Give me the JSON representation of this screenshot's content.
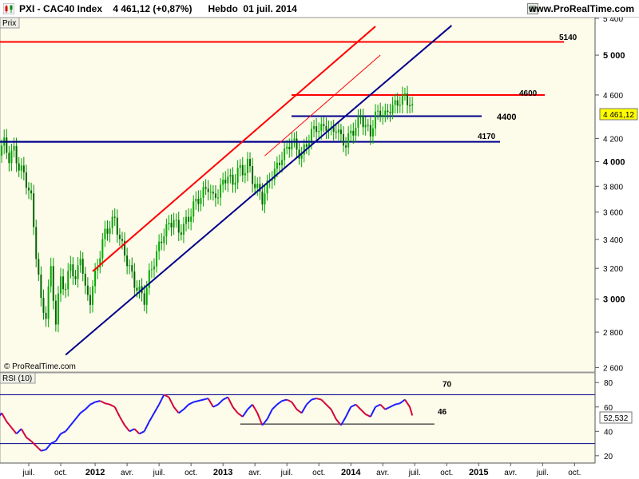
{
  "header": {
    "title": "PXI - CAC40 Index    4 461,12 (+0,87%)      Hebdo  01 juil. 2014",
    "site": "www.ProRealTime.com"
  },
  "colors": {
    "bull": "#00aa00",
    "bear": "#009000",
    "red": "#ff0000",
    "blue": "#00008b",
    "rsi": "#1a1aff",
    "rsi_down": "#d0003c",
    "panel_bg": "#fdfbea",
    "last_price": "#ffff00"
  },
  "chart_data": [
    {
      "type": "candlestick",
      "panel_label": "Prix",
      "watermark": "© ProRealTime.com",
      "last_price_label": "4 461,12",
      "ylim": [
        2580,
        5400
      ],
      "y_tick_labels": [
        {
          "value": 5400,
          "label": "5 400"
        },
        {
          "value": 5000,
          "label": "5 000",
          "bold": true
        },
        {
          "value": 4600,
          "label": "4 600"
        },
        {
          "value": 4200,
          "label": "4 200"
        },
        {
          "value": 4000,
          "label": "4 000",
          "bold": true
        },
        {
          "value": 3800,
          "label": "3 800"
        },
        {
          "value": 3600,
          "label": "3 600"
        },
        {
          "value": 3400,
          "label": "3 400"
        },
        {
          "value": 3200,
          "label": "3 200"
        },
        {
          "value": 3000,
          "label": "3 000",
          "bold": true
        },
        {
          "value": 2800,
          "label": "2 800"
        },
        {
          "value": 2600,
          "label": "2 600"
        }
      ],
      "x_tick_labels": [
        {
          "label": "juil.",
          "week": 0
        },
        {
          "label": "oct.",
          "week": 13
        },
        {
          "label": "2012",
          "week": 27,
          "bold": true
        },
        {
          "label": "avr.",
          "week": 40
        },
        {
          "label": "juil.",
          "week": 53
        },
        {
          "label": "oct.",
          "week": 66
        },
        {
          "label": "2013",
          "week": 79,
          "bold": true
        },
        {
          "label": "avr.",
          "week": 92
        },
        {
          "label": "juil.",
          "week": 105
        },
        {
          "label": "oct.",
          "week": 118
        },
        {
          "label": "2014",
          "week": 131,
          "bold": true
        },
        {
          "label": "avr.",
          "week": 144
        },
        {
          "label": "juil.",
          "week": 157
        },
        {
          "label": "oct.",
          "week": 170
        },
        {
          "label": "2015",
          "week": 183,
          "bold": true
        },
        {
          "label": "avr.",
          "week": 196
        },
        {
          "label": "juil.",
          "week": 209
        },
        {
          "label": "oct.",
          "week": 222
        }
      ],
      "price_path": [
        [
          -12,
          4100
        ],
        [
          -10,
          4160
        ],
        [
          -8,
          4030
        ],
        [
          -6,
          4100
        ],
        [
          -4,
          3950
        ],
        [
          -2,
          3900
        ],
        [
          1,
          3700
        ],
        [
          3,
          3300
        ],
        [
          5,
          2980
        ],
        [
          7,
          2900
        ],
        [
          9,
          3200
        ],
        [
          11,
          2850
        ],
        [
          13,
          3150
        ],
        [
          15,
          3050
        ],
        [
          17,
          3250
        ],
        [
          19,
          3100
        ],
        [
          21,
          3300
        ],
        [
          23,
          3050
        ],
        [
          25,
          3000
        ],
        [
          27,
          3150
        ],
        [
          29,
          3300
        ],
        [
          31,
          3450
        ],
        [
          33,
          3500
        ],
        [
          35,
          3550
        ],
        [
          37,
          3400
        ],
        [
          39,
          3300
        ],
        [
          41,
          3200
        ],
        [
          43,
          3100
        ],
        [
          45,
          3050
        ],
        [
          47,
          3000
        ],
        [
          49,
          3150
        ],
        [
          51,
          3250
        ],
        [
          53,
          3350
        ],
        [
          55,
          3450
        ],
        [
          57,
          3500
        ],
        [
          59,
          3550
        ],
        [
          61,
          3450
        ],
        [
          63,
          3500
        ],
        [
          65,
          3550
        ],
        [
          67,
          3650
        ],
        [
          69,
          3700
        ],
        [
          71,
          3750
        ],
        [
          73,
          3800
        ],
        [
          75,
          3700
        ],
        [
          77,
          3750
        ],
        [
          79,
          3820
        ],
        [
          81,
          3900
        ],
        [
          83,
          3800
        ],
        [
          85,
          3950
        ],
        [
          87,
          3900
        ],
        [
          89,
          4000
        ],
        [
          91,
          3850
        ],
        [
          93,
          3780
        ],
        [
          95,
          3700
        ],
        [
          97,
          3800
        ],
        [
          99,
          3900
        ],
        [
          101,
          3950
        ],
        [
          103,
          4050
        ],
        [
          105,
          4100
        ],
        [
          107,
          4200
        ],
        [
          109,
          4100
        ],
        [
          111,
          4050
        ],
        [
          113,
          4150
        ],
        [
          115,
          4250
        ],
        [
          117,
          4300
        ],
        [
          119,
          4280
        ],
        [
          121,
          4320
        ],
        [
          123,
          4250
        ],
        [
          125,
          4300
        ],
        [
          127,
          4200
        ],
        [
          129,
          4150
        ],
        [
          131,
          4250
        ],
        [
          133,
          4300
        ],
        [
          135,
          4400
        ],
        [
          137,
          4300
        ],
        [
          139,
          4250
        ],
        [
          141,
          4400
        ],
        [
          143,
          4450
        ],
        [
          145,
          4400
        ],
        [
          147,
          4480
        ],
        [
          149,
          4500
        ],
        [
          151,
          4550
        ],
        [
          153,
          4580
        ],
        [
          155,
          4520
        ],
        [
          156,
          4461
        ]
      ],
      "horizontal_levels": [
        {
          "value": 5140,
          "label": "5140",
          "color": "red"
        },
        {
          "value": 4600,
          "label": "4600",
          "color": "red"
        },
        {
          "value": 4400,
          "label": "4400",
          "color": "blue"
        },
        {
          "value": 4170,
          "label": "4170",
          "color": "blue"
        }
      ],
      "trend_lines": [
        {
          "from": [
            -13,
            4170
          ],
          "to": [
            127,
            4170
          ],
          "color": "blue",
          "width": 2
        },
        {
          "from": [
            15,
            2670
          ],
          "to": [
            172,
            5320
          ],
          "color": "blue",
          "width": 2
        },
        {
          "from": [
            26,
            3180
          ],
          "to": [
            141,
            5310
          ],
          "color": "red",
          "width": 2
        },
        {
          "from": [
            96,
            4050
          ],
          "to": [
            143,
            5000
          ],
          "color": "red",
          "width": 1
        }
      ]
    },
    {
      "type": "line",
      "panel_label": "RSI (10)",
      "last_value_label": "52,532",
      "ylim": [
        14,
        88
      ],
      "y_tick_labels": [
        {
          "value": 80,
          "label": "80"
        },
        {
          "value": 60,
          "label": "60"
        },
        {
          "value": 40,
          "label": "40"
        },
        {
          "value": 20,
          "label": "20"
        }
      ],
      "levels": [
        {
          "value": 70,
          "label": "70"
        },
        {
          "value": 30
        }
      ],
      "support_line": {
        "value": 46,
        "label": "46",
        "from_week": 86,
        "to_week": 165
      },
      "rsi_path": [
        [
          -13,
          50
        ],
        [
          -11,
          55
        ],
        [
          -9,
          48
        ],
        [
          -7,
          43
        ],
        [
          -5,
          38
        ],
        [
          -3,
          42
        ],
        [
          -1,
          35
        ],
        [
          1,
          32
        ],
        [
          3,
          28
        ],
        [
          5,
          24
        ],
        [
          7,
          25
        ],
        [
          9,
          30
        ],
        [
          11,
          32
        ],
        [
          13,
          38
        ],
        [
          15,
          40
        ],
        [
          17,
          45
        ],
        [
          19,
          50
        ],
        [
          21,
          55
        ],
        [
          23,
          58
        ],
        [
          25,
          62
        ],
        [
          27,
          64
        ],
        [
          29,
          65
        ],
        [
          31,
          63
        ],
        [
          33,
          62
        ],
        [
          35,
          60
        ],
        [
          37,
          52
        ],
        [
          39,
          45
        ],
        [
          41,
          40
        ],
        [
          43,
          42
        ],
        [
          45,
          38
        ],
        [
          47,
          40
        ],
        [
          49,
          48
        ],
        [
          51,
          55
        ],
        [
          53,
          62
        ],
        [
          55,
          70
        ],
        [
          57,
          68
        ],
        [
          59,
          60
        ],
        [
          61,
          55
        ],
        [
          63,
          58
        ],
        [
          65,
          62
        ],
        [
          67,
          64
        ],
        [
          69,
          65
        ],
        [
          71,
          66
        ],
        [
          73,
          67
        ],
        [
          75,
          60
        ],
        [
          77,
          62
        ],
        [
          79,
          66
        ],
        [
          81,
          68
        ],
        [
          83,
          60
        ],
        [
          85,
          55
        ],
        [
          87,
          52
        ],
        [
          89,
          58
        ],
        [
          91,
          62
        ],
        [
          93,
          55
        ],
        [
          95,
          45
        ],
        [
          97,
          50
        ],
        [
          99,
          58
        ],
        [
          101,
          62
        ],
        [
          103,
          65
        ],
        [
          105,
          66
        ],
        [
          107,
          64
        ],
        [
          109,
          58
        ],
        [
          111,
          55
        ],
        [
          113,
          62
        ],
        [
          115,
          66
        ],
        [
          117,
          67
        ],
        [
          119,
          66
        ],
        [
          121,
          62
        ],
        [
          123,
          58
        ],
        [
          125,
          50
        ],
        [
          127,
          45
        ],
        [
          129,
          52
        ],
        [
          131,
          60
        ],
        [
          133,
          62
        ],
        [
          135,
          58
        ],
        [
          137,
          54
        ],
        [
          139,
          52
        ],
        [
          141,
          60
        ],
        [
          143,
          62
        ],
        [
          145,
          58
        ],
        [
          147,
          60
        ],
        [
          149,
          62
        ],
        [
          151,
          63
        ],
        [
          153,
          66
        ],
        [
          155,
          60
        ],
        [
          156,
          53
        ]
      ]
    }
  ]
}
